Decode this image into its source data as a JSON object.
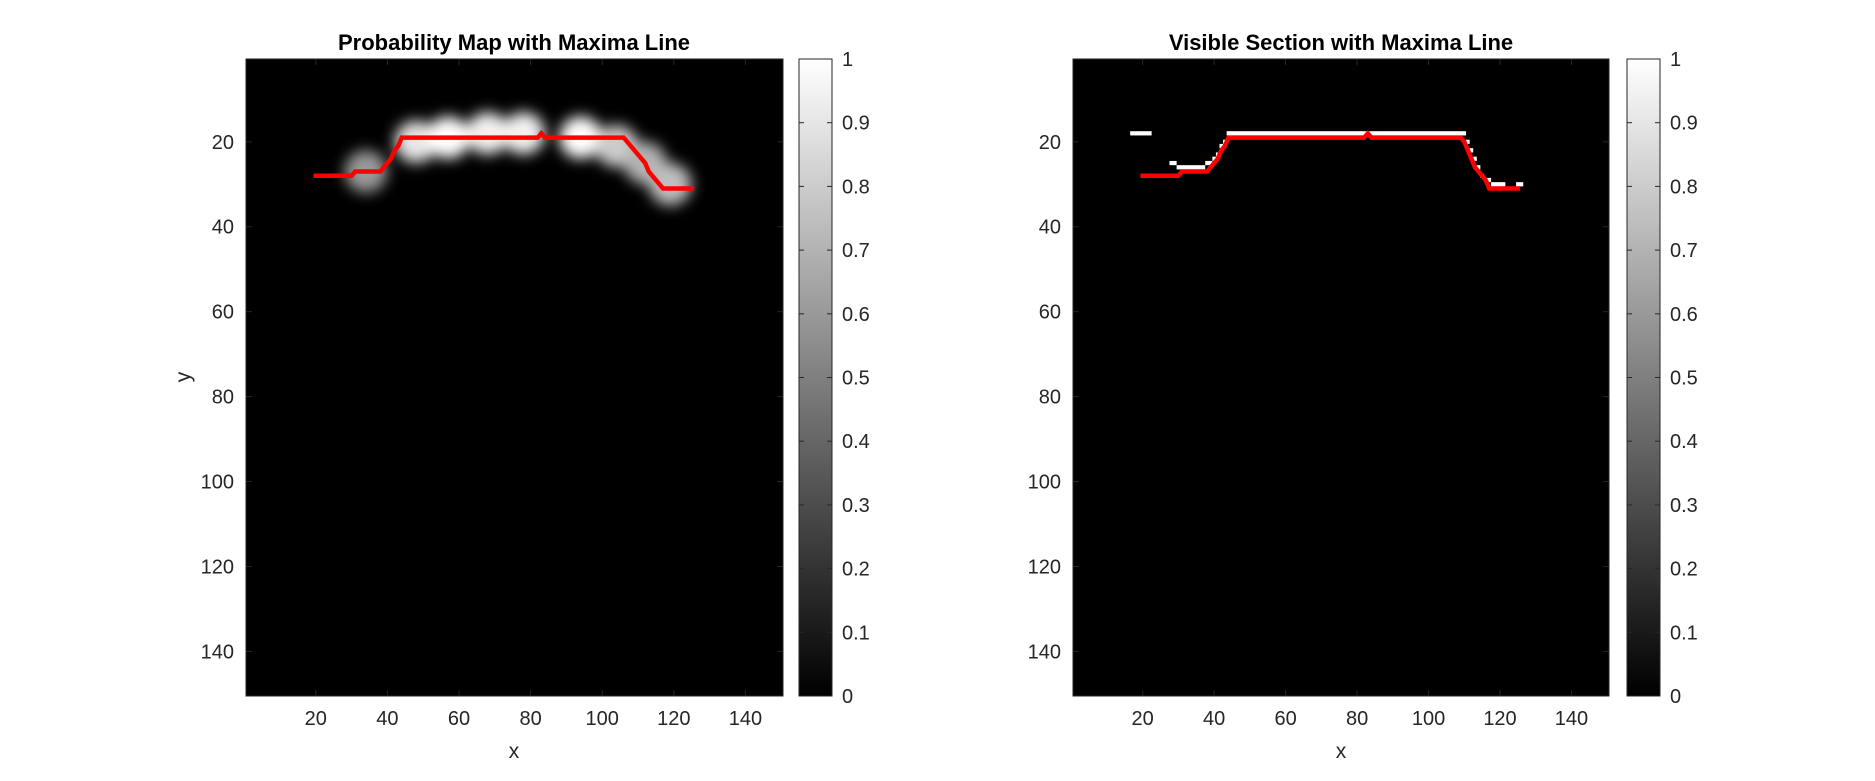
{
  "colors": {
    "background": "#ffffff",
    "line": "#ff0000",
    "axis": "#262626"
  },
  "chart_data": [
    {
      "type": "heatmap",
      "title": "Probability Map with Maxima Line",
      "xlabel": "x",
      "ylabel": "y",
      "xlim": [
        0.5,
        150.5
      ],
      "ylim": [
        0.5,
        150.5
      ],
      "y_reversed": true,
      "xticks": [
        20,
        40,
        60,
        80,
        100,
        120,
        140
      ],
      "yticks": [
        20,
        40,
        60,
        80,
        100,
        120,
        140
      ],
      "colormap": "gray",
      "colorbar": {
        "limits": [
          0,
          1
        ],
        "ticks": [
          0,
          0.1,
          0.2,
          0.3,
          0.4,
          0.5,
          0.6,
          0.7,
          0.8,
          0.9,
          1
        ]
      },
      "blobs": [
        {
          "x": 34,
          "y": 27,
          "peak": 0.6
        },
        {
          "x": 48,
          "y": 20,
          "peak": 0.9
        },
        {
          "x": 57,
          "y": 19,
          "peak": 1.0
        },
        {
          "x": 68,
          "y": 18,
          "peak": 0.95
        },
        {
          "x": 78,
          "y": 18,
          "peak": 0.95
        },
        {
          "x": 94,
          "y": 19,
          "peak": 1.0
        },
        {
          "x": 104,
          "y": 21,
          "peak": 0.8
        },
        {
          "x": 112,
          "y": 25,
          "peak": 0.7
        },
        {
          "x": 119,
          "y": 30,
          "peak": 0.75
        }
      ],
      "maxima_line": {
        "x": [
          20,
          30,
          31,
          38,
          39,
          40,
          41,
          42,
          43,
          44,
          82,
          83,
          84,
          106,
          107,
          108,
          109,
          110,
          111,
          112,
          113,
          114,
          115,
          116,
          117,
          125
        ],
        "y": [
          28,
          28,
          27,
          27,
          26,
          25,
          24,
          22,
          21,
          19,
          19,
          18,
          19,
          19,
          20,
          21,
          22,
          23,
          24,
          25,
          27,
          28,
          29,
          30,
          31,
          31
        ]
      }
    },
    {
      "type": "heatmap",
      "title": "Visible Section with Maxima Line",
      "xlabel": "x",
      "ylabel": "",
      "xlim": [
        0.5,
        150.5
      ],
      "ylim": [
        0.5,
        150.5
      ],
      "y_reversed": true,
      "xticks": [
        20,
        40,
        60,
        80,
        100,
        120,
        140
      ],
      "yticks": [
        20,
        40,
        60,
        80,
        100,
        120,
        140
      ],
      "colormap": "gray",
      "colorbar": {
        "limits": [
          0,
          1
        ],
        "ticks": [
          0,
          0.1,
          0.2,
          0.3,
          0.4,
          0.5,
          0.6,
          0.7,
          0.8,
          0.9,
          1
        ]
      },
      "visible_segments": [
        {
          "x0": 17,
          "x1": 22,
          "y": 18
        },
        {
          "x0": 28,
          "x1": 29,
          "y": 25
        },
        {
          "x0": 30,
          "x1": 37,
          "y": 26
        },
        {
          "x0": 38,
          "x1": 39,
          "y": 25
        },
        {
          "x0": 40,
          "x1": 40,
          "y": 24
        },
        {
          "x0": 41,
          "x1": 41,
          "y": 23
        },
        {
          "x0": 42,
          "x1": 42,
          "y": 21
        },
        {
          "x0": 43,
          "x1": 43,
          "y": 20
        },
        {
          "x0": 44,
          "x1": 110,
          "y": 18
        },
        {
          "x0": 111,
          "x1": 111,
          "y": 20
        },
        {
          "x0": 112,
          "x1": 112,
          "y": 22
        },
        {
          "x0": 113,
          "x1": 113,
          "y": 24
        },
        {
          "x0": 114,
          "x1": 114,
          "y": 26
        },
        {
          "x0": 115,
          "x1": 115,
          "y": 28
        },
        {
          "x0": 116,
          "x1": 117,
          "y": 29
        },
        {
          "x0": 118,
          "x1": 121,
          "y": 30
        },
        {
          "x0": 125,
          "x1": 126,
          "y": 30
        }
      ],
      "maxima_line": {
        "x": [
          20,
          30,
          31,
          38,
          39,
          40,
          41,
          42,
          43,
          44,
          82,
          83,
          84,
          109,
          110,
          111,
          112,
          113,
          114,
          115,
          116,
          117,
          125
        ],
        "y": [
          28,
          28,
          27,
          27,
          26,
          25,
          24,
          22,
          21,
          19,
          19,
          18,
          19,
          19,
          20,
          22,
          24,
          26,
          27,
          28,
          29,
          31,
          31
        ]
      }
    }
  ]
}
